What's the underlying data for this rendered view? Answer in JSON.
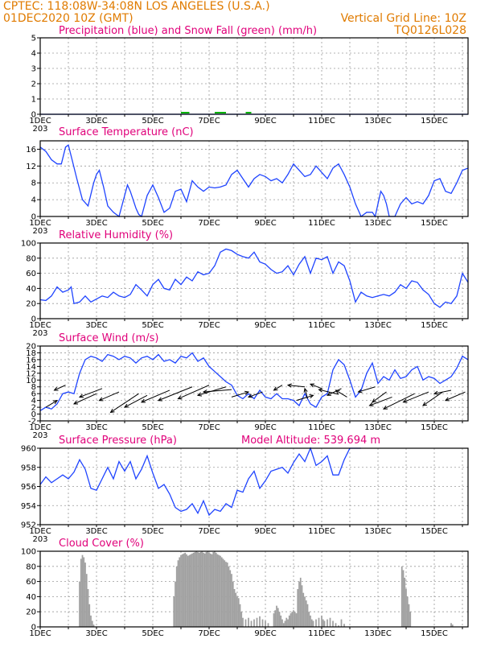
{
  "header": {
    "line1_left": "CPTEC:   118:08W-34:08N   LOS ANGELES (U.S.A.)",
    "line2_left": "01DEC2020 10Z (GMT)",
    "line2_right": "Vertical Grid Line: 10Z",
    "line3_right": "TQ0126L028"
  },
  "model_altitude": "Model Altitude: 539.694 m",
  "x_tick_labels": [
    "1DEC",
    "3DEC",
    "5DEC",
    "7DEC",
    "9DEC",
    "11DEC",
    "13DEC",
    "15DEC"
  ],
  "x_tick_days": [
    1,
    3,
    5,
    7,
    9,
    11,
    13,
    15
  ],
  "x_range_days": [
    1,
    16.2
  ],
  "year_fragment": "203",
  "colors": {
    "header": "#e07b00",
    "title": "#e0007a",
    "line": "#1f44ff",
    "snow": "#00b000",
    "cloud": "#a0a0a0"
  },
  "chart_data": [
    {
      "id": "precip",
      "type": "line",
      "title": "Precipitation (blue) and Snow Fall (green) (mm/h)",
      "ylim": [
        0,
        5
      ],
      "yticks": [
        0,
        1,
        2,
        3,
        4,
        5
      ],
      "series": [
        {
          "name": "blue",
          "x": [
            1,
            16.2
          ],
          "y": [
            0,
            0
          ]
        },
        {
          "name": "green",
          "segments": [
            [
              6.0,
              6.3
            ],
            [
              7.2,
              7.6
            ],
            [
              8.3,
              8.5
            ]
          ],
          "y": 0.05
        }
      ]
    },
    {
      "id": "temperature",
      "type": "line",
      "title": "Surface Temperature (nC)",
      "ylim": [
        0,
        18
      ],
      "yticks": [
        0,
        4,
        8,
        12,
        16
      ],
      "series": [
        {
          "x": [
            1.0,
            1.2,
            1.4,
            1.6,
            1.75,
            1.9,
            2.0,
            2.15,
            2.3,
            2.5,
            2.7,
            2.9,
            3.0,
            3.1,
            3.25,
            3.4,
            3.6,
            3.8,
            4.0,
            4.1,
            4.2,
            4.3,
            4.4,
            4.5,
            4.6,
            4.8,
            5.0,
            5.2,
            5.4,
            5.6,
            5.8,
            6.0,
            6.1,
            6.2,
            6.3,
            6.4,
            6.6,
            6.8,
            7.0,
            7.2,
            7.4,
            7.6,
            7.8,
            8.0,
            8.2,
            8.4,
            8.6,
            8.8,
            9.0,
            9.2,
            9.4,
            9.6,
            9.8,
            10.0,
            10.2,
            10.4,
            10.6,
            10.8,
            11.0,
            11.2,
            11.4,
            11.6,
            11.8,
            12.0,
            12.2,
            12.4,
            12.6,
            12.8,
            12.9,
            13.0,
            13.1,
            13.2,
            13.3,
            13.4,
            13.5,
            13.6,
            13.8,
            14.0,
            14.2,
            14.4,
            14.6,
            14.8,
            15.0,
            15.2,
            15.4,
            15.6,
            15.8,
            16.0,
            16.2
          ],
          "y": [
            16.5,
            15.5,
            13.5,
            12.5,
            12.5,
            16.5,
            17.0,
            13.0,
            9.0,
            4.0,
            2.5,
            8.0,
            10.0,
            11.0,
            7.0,
            2.5,
            1.0,
            0.0,
            5.0,
            7.5,
            6.0,
            4.0,
            2.0,
            0.5,
            0.0,
            5.0,
            7.5,
            4.5,
            1.0,
            2.0,
            6.0,
            6.5,
            5.0,
            3.5,
            6.0,
            8.5,
            7.0,
            6.0,
            7.0,
            6.8,
            7.0,
            7.5,
            10.0,
            11.0,
            9.0,
            7.0,
            9.0,
            10.0,
            9.5,
            8.5,
            9.0,
            8.0,
            10.0,
            12.5,
            11.0,
            9.5,
            10.0,
            12.0,
            10.5,
            9.0,
            11.5,
            12.5,
            10.0,
            7.0,
            3.0,
            0.0,
            1.0,
            1.0,
            0.0,
            3.0,
            6.0,
            5.0,
            3.0,
            0.0,
            0.0,
            0.0,
            3.0,
            4.5,
            3.0,
            3.5,
            3.0,
            5.0,
            8.5,
            9.0,
            6.0,
            5.5,
            8.0,
            11.0,
            11.5
          ]
        }
      ]
    },
    {
      "id": "humidity",
      "type": "line",
      "title": "Relative Humidity (%)",
      "ylim": [
        0,
        100
      ],
      "yticks": [
        0,
        20,
        40,
        60,
        80,
        100
      ],
      "series": [
        {
          "x": [
            1.0,
            1.2,
            1.4,
            1.6,
            1.8,
            2.0,
            2.1,
            2.2,
            2.4,
            2.6,
            2.8,
            3.0,
            3.2,
            3.4,
            3.6,
            3.8,
            4.0,
            4.2,
            4.4,
            4.6,
            4.8,
            5.0,
            5.2,
            5.4,
            5.6,
            5.8,
            6.0,
            6.2,
            6.4,
            6.6,
            6.8,
            7.0,
            7.2,
            7.4,
            7.6,
            7.8,
            8.0,
            8.2,
            8.4,
            8.6,
            8.8,
            9.0,
            9.2,
            9.4,
            9.6,
            9.8,
            10.0,
            10.2,
            10.4,
            10.6,
            10.8,
            11.0,
            11.2,
            11.4,
            11.6,
            11.8,
            12.0,
            12.2,
            12.4,
            12.6,
            12.8,
            13.0,
            13.2,
            13.4,
            13.6,
            13.8,
            14.0,
            14.2,
            14.4,
            14.6,
            14.8,
            15.0,
            15.2,
            15.4,
            15.6,
            15.8,
            16.0,
            16.2
          ],
          "y": [
            25,
            24,
            30,
            42,
            35,
            38,
            42,
            20,
            22,
            30,
            22,
            26,
            30,
            28,
            35,
            30,
            28,
            32,
            45,
            38,
            30,
            45,
            52,
            40,
            38,
            52,
            45,
            55,
            50,
            62,
            58,
            60,
            70,
            88,
            92,
            90,
            85,
            82,
            80,
            88,
            75,
            72,
            65,
            60,
            62,
            70,
            58,
            72,
            82,
            60,
            80,
            78,
            82,
            60,
            75,
            70,
            50,
            22,
            35,
            30,
            28,
            30,
            32,
            30,
            35,
            45,
            40,
            50,
            48,
            38,
            32,
            20,
            15,
            22,
            20,
            30,
            60,
            48
          ]
        }
      ]
    },
    {
      "id": "wind",
      "type": "line",
      "title": "Surface Wind (m/s)",
      "ylim": [
        -2,
        20
      ],
      "yticks": [
        -2,
        0,
        2,
        4,
        6,
        8,
        10,
        12,
        14,
        16,
        18,
        20
      ],
      "series": [
        {
          "x": [
            1.0,
            1.2,
            1.4,
            1.6,
            1.8,
            2.0,
            2.2,
            2.4,
            2.6,
            2.8,
            3.0,
            3.2,
            3.4,
            3.6,
            3.8,
            4.0,
            4.2,
            4.4,
            4.6,
            4.8,
            5.0,
            5.2,
            5.4,
            5.6,
            5.8,
            6.0,
            6.2,
            6.4,
            6.6,
            6.8,
            7.0,
            7.2,
            7.4,
            7.6,
            7.8,
            8.0,
            8.2,
            8.4,
            8.6,
            8.8,
            9.0,
            9.2,
            9.4,
            9.6,
            9.8,
            10.0,
            10.2,
            10.4,
            10.6,
            10.8,
            11.0,
            11.2,
            11.4,
            11.6,
            11.8,
            12.0,
            12.2,
            12.4,
            12.6,
            12.8,
            13.0,
            13.2,
            13.4,
            13.6,
            13.8,
            14.0,
            14.2,
            14.4,
            14.6,
            14.8,
            15.0,
            15.2,
            15.4,
            15.6,
            15.8,
            16.0,
            16.2
          ],
          "y": [
            1.0,
            2.0,
            1.5,
            3.0,
            6.0,
            6.5,
            6.0,
            12.0,
            16.0,
            17.0,
            16.5,
            15.5,
            17.5,
            17.0,
            16.0,
            17.0,
            16.5,
            15.0,
            16.5,
            17.0,
            16.0,
            17.5,
            15.5,
            16.0,
            15.0,
            17.0,
            16.5,
            18.0,
            15.5,
            16.5,
            14.0,
            12.5,
            11.0,
            9.5,
            8.5,
            5.5,
            4.5,
            6.0,
            4.5,
            7.0,
            5.0,
            4.5,
            6.0,
            4.5,
            4.5,
            4.0,
            2.5,
            6.0,
            3.0,
            2.0,
            5.0,
            6.0,
            13.0,
            16.0,
            14.5,
            10.0,
            5.0,
            7.0,
            12.0,
            15.0,
            9.0,
            11.0,
            10.0,
            13.0,
            10.5,
            11.0,
            13.0,
            14.0,
            10.0,
            11.0,
            10.5,
            9.0,
            10.0,
            11.0,
            13.5,
            17.0,
            16.0
          ]
        }
      ]
    },
    {
      "id": "pressure",
      "type": "line",
      "title": "Surface Pressure (hPa)",
      "ylim": [
        952,
        960
      ],
      "yticks": [
        952,
        954,
        956,
        958,
        960
      ],
      "series": [
        {
          "x": [
            1.0,
            1.2,
            1.4,
            1.6,
            1.8,
            2.0,
            2.2,
            2.4,
            2.6,
            2.8,
            3.0,
            3.2,
            3.4,
            3.6,
            3.8,
            4.0,
            4.2,
            4.4,
            4.6,
            4.8,
            5.0,
            5.2,
            5.4,
            5.6,
            5.8,
            6.0,
            6.2,
            6.4,
            6.6,
            6.8,
            7.0,
            7.2,
            7.4,
            7.6,
            7.8,
            8.0,
            8.2,
            8.4,
            8.6,
            8.8,
            9.0,
            9.2,
            9.4,
            9.6,
            9.8,
            10.0,
            10.2,
            10.4,
            10.6,
            10.8,
            11.0,
            11.2,
            11.4,
            11.6,
            11.8,
            12.0,
            12.2,
            12.4
          ],
          "y": [
            956.2,
            957.0,
            956.4,
            956.8,
            957.2,
            956.8,
            957.5,
            958.8,
            957.8,
            955.8,
            955.6,
            956.8,
            958.0,
            956.8,
            958.6,
            957.6,
            958.6,
            956.8,
            957.8,
            959.2,
            957.4,
            955.8,
            956.2,
            955.2,
            953.8,
            953.4,
            953.6,
            954.2,
            953.2,
            954.5,
            953.0,
            953.6,
            953.4,
            954.2,
            953.8,
            955.6,
            955.4,
            956.8,
            957.6,
            955.8,
            956.6,
            957.6,
            957.8,
            958.0,
            957.4,
            958.5,
            959.4,
            958.6,
            960.0,
            958.2,
            958.6,
            959.2,
            957.2,
            957.2,
            958.8,
            960.0,
            960.0,
            960.0
          ]
        }
      ]
    },
    {
      "id": "cloud",
      "type": "bar",
      "title": "Cloud Cover (%)",
      "ylim": [
        0,
        100
      ],
      "yticks": [
        0,
        20,
        40,
        60,
        80,
        100
      ],
      "x": [
        2.4,
        2.45,
        2.5,
        2.55,
        2.6,
        2.65,
        2.7,
        2.75,
        2.8,
        2.85,
        2.9,
        5.75,
        5.8,
        5.85,
        5.9,
        5.95,
        6.0,
        6.05,
        6.1,
        6.15,
        6.2,
        6.25,
        6.3,
        6.35,
        6.4,
        6.45,
        6.5,
        6.55,
        6.6,
        6.65,
        6.7,
        6.75,
        6.8,
        6.85,
        6.9,
        6.95,
        7.0,
        7.05,
        7.1,
        7.15,
        7.2,
        7.25,
        7.3,
        7.35,
        7.4,
        7.45,
        7.5,
        7.55,
        7.6,
        7.65,
        7.7,
        7.75,
        7.8,
        7.85,
        7.9,
        7.95,
        8.0,
        8.05,
        8.1,
        8.15,
        8.2,
        8.3,
        8.4,
        8.5,
        8.6,
        8.7,
        8.8,
        8.9,
        9.0,
        9.1,
        9.3,
        9.35,
        9.4,
        9.45,
        9.5,
        9.55,
        9.6,
        9.65,
        9.7,
        9.75,
        9.8,
        9.85,
        9.9,
        9.95,
        10.0,
        10.05,
        10.1,
        10.15,
        10.2,
        10.25,
        10.3,
        10.35,
        10.4,
        10.45,
        10.5,
        10.55,
        10.6,
        10.65,
        10.7,
        10.8,
        10.9,
        11.0,
        11.05,
        11.1,
        11.2,
        11.3,
        11.4,
        11.5,
        11.6,
        11.7,
        11.8,
        13.85,
        13.9,
        13.95,
        14.0,
        14.05,
        14.1,
        14.15,
        15.6,
        15.65
      ],
      "values": [
        60,
        90,
        95,
        92,
        85,
        70,
        50,
        30,
        15,
        8,
        3,
        40,
        60,
        80,
        88,
        92,
        95,
        96,
        97,
        98,
        96,
        94,
        95,
        96,
        97,
        98,
        99,
        100,
        99,
        98,
        99,
        100,
        98,
        97,
        99,
        100,
        98,
        97,
        96,
        99,
        100,
        98,
        96,
        95,
        94,
        92,
        90,
        88,
        86,
        85,
        80,
        75,
        70,
        60,
        50,
        45,
        40,
        38,
        30,
        20,
        12,
        10,
        12,
        8,
        10,
        12,
        14,
        10,
        8,
        5,
        18,
        22,
        28,
        25,
        20,
        15,
        10,
        5,
        8,
        12,
        10,
        15,
        18,
        20,
        22,
        20,
        18,
        50,
        60,
        65,
        55,
        45,
        40,
        35,
        30,
        20,
        15,
        10,
        8,
        10,
        12,
        15,
        10,
        8,
        10,
        12,
        8,
        5,
        2,
        10,
        4,
        80,
        75,
        65,
        50,
        40,
        30,
        20,
        5,
        3
      ]
    }
  ]
}
